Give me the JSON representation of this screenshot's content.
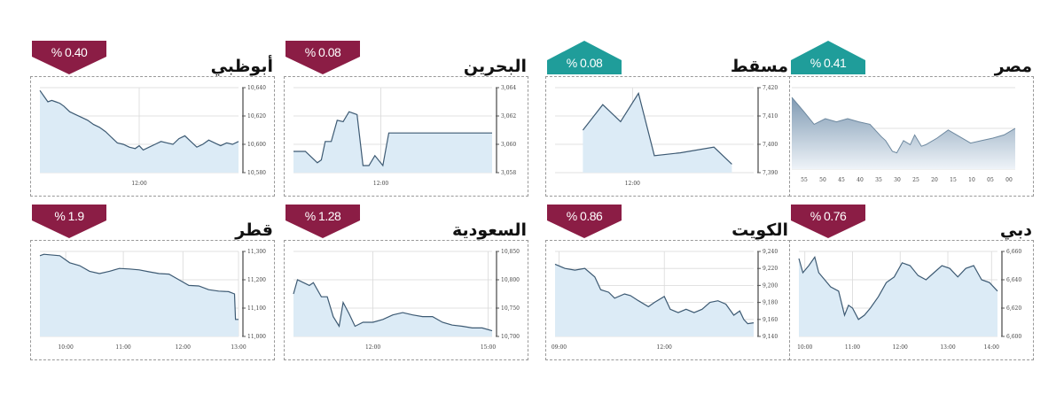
{
  "colors": {
    "down": "#8b1d45",
    "up": "#1f9d9a",
    "line": "#3d5a73",
    "fill": "#dcebf6",
    "grid": "#d9d9d9"
  },
  "panels": [
    {
      "id": "abudhabi",
      "title": "أبوظبي",
      "badge": "% 0.40",
      "direction": "down"
    },
    {
      "id": "bahrain",
      "title": "البحرين",
      "badge": "% 0.08",
      "direction": "down"
    },
    {
      "id": "muscat",
      "title": "مسقط",
      "badge": "% 0.08",
      "direction": "up"
    },
    {
      "id": "egypt",
      "title": "مصر",
      "badge": "% 0.41",
      "direction": "up"
    },
    {
      "id": "qatar",
      "title": "قطر",
      "badge": "% 1.9",
      "direction": "down"
    },
    {
      "id": "saudi",
      "title": "السعودية",
      "badge": "% 1.28",
      "direction": "down"
    },
    {
      "id": "kuwait",
      "title": "الكويت",
      "badge": "% 0.86",
      "direction": "down"
    },
    {
      "id": "dubai",
      "title": "دبي",
      "badge": "% 0.76",
      "direction": "down"
    }
  ],
  "chart_data": [
    {
      "type": "area",
      "title": "أبوظبي",
      "change": "0.40 %",
      "direction": "down",
      "yticks": [
        "10,640",
        "10,620",
        "10,600",
        "10,580"
      ],
      "ylim": [
        10580,
        10640
      ],
      "xticks": [
        {
          "label": "12:00",
          "pos": 0.5
        }
      ],
      "x": [
        0,
        0.02,
        0.04,
        0.06,
        0.08,
        0.1,
        0.12,
        0.15,
        0.18,
        0.21,
        0.24,
        0.27,
        0.3,
        0.33,
        0.36,
        0.39,
        0.42,
        0.45,
        0.48,
        0.5,
        0.52,
        0.55,
        0.58,
        0.61,
        0.64,
        0.67,
        0.7,
        0.73,
        0.76,
        0.79,
        0.82,
        0.85,
        0.88,
        0.91,
        0.94,
        0.97,
        1.0
      ],
      "values": [
        10638,
        10634,
        10630,
        10631,
        10630,
        10629,
        10627,
        10623,
        10621,
        10619,
        10617,
        10614,
        10612,
        10609,
        10605,
        10601,
        10600,
        10598,
        10597,
        10599,
        10596,
        10598,
        10600,
        10602,
        10601,
        10600,
        10604,
        10606,
        10602,
        10598,
        10600,
        10603,
        10601,
        10599,
        10601,
        10600,
        10602
      ]
    },
    {
      "type": "line",
      "title": "البحرين",
      "change": "0.08 %",
      "direction": "down",
      "yticks": [
        "3,064",
        "3,062",
        "3,060",
        "3,058"
      ],
      "ylim": [
        3058,
        3064
      ],
      "xticks": [
        {
          "label": "12:00",
          "pos": 0.44
        }
      ],
      "x": [
        0,
        0.06,
        0.12,
        0.14,
        0.16,
        0.19,
        0.22,
        0.25,
        0.28,
        0.32,
        0.35,
        0.38,
        0.41,
        0.45,
        0.48,
        0.51,
        0.54,
        0.56,
        0.59,
        1.0
      ],
      "values": [
        3059.5,
        3059.5,
        3058.7,
        3058.9,
        3060.2,
        3060.2,
        3061.7,
        3061.6,
        3062.3,
        3062.1,
        3058.5,
        3058.5,
        3059.2,
        3058.5,
        3060.8,
        3060.8,
        3060.8,
        3060.8,
        3060.8,
        3060.8
      ]
    },
    {
      "type": "area",
      "title": "مسقط",
      "change": "0.08 %",
      "direction": "up",
      "yticks": [
        "7,420",
        "7,410",
        "7,400",
        "7,390"
      ],
      "ylim": [
        7390,
        7420
      ],
      "xticks": [
        {
          "label": "12:00",
          "pos": 0.39
        }
      ],
      "x": [
        0.14,
        0.24,
        0.33,
        0.42,
        0.5,
        0.63,
        0.8,
        0.89
      ],
      "values": [
        7405,
        7414,
        7408,
        7418,
        7396,
        7397,
        7399,
        7393
      ]
    },
    {
      "type": "area",
      "title": "مصر",
      "change": "0.41 %",
      "direction": "up",
      "yticks": [
        "",
        "",
        ""
      ],
      "ylim": [
        0,
        100
      ],
      "xticks_note": "illegible time labels",
      "x": [
        0,
        0.05,
        0.1,
        0.15,
        0.2,
        0.25,
        0.3,
        0.35,
        0.4,
        0.42,
        0.45,
        0.47,
        0.5,
        0.53,
        0.55,
        0.58,
        0.6,
        0.65,
        0.7,
        0.75,
        0.8,
        0.85,
        0.9,
        0.95,
        1.0
      ],
      "values": [
        88,
        72,
        55,
        62,
        58,
        62,
        58,
        55,
        40,
        35,
        22,
        20,
        35,
        30,
        42,
        28,
        30,
        38,
        48,
        40,
        32,
        35,
        38,
        42,
        50
      ]
    },
    {
      "type": "area",
      "title": "قطر",
      "change": "1.9 %",
      "direction": "down",
      "yticks": [
        "11,300",
        "11,200",
        "11,100",
        "11,000"
      ],
      "ylim": [
        11000,
        11300
      ],
      "xticks": [
        {
          "label": "10:00",
          "pos": 0.13
        },
        {
          "label": "11:00",
          "pos": 0.42
        },
        {
          "label": "12:00",
          "pos": 0.72
        },
        {
          "label": "13:00",
          "pos": 1.0
        }
      ],
      "x": [
        0,
        0.02,
        0.05,
        0.1,
        0.15,
        0.2,
        0.25,
        0.3,
        0.35,
        0.4,
        0.45,
        0.5,
        0.55,
        0.6,
        0.65,
        0.7,
        0.75,
        0.8,
        0.85,
        0.9,
        0.95,
        0.98,
        0.985,
        1.0
      ],
      "values": [
        11285,
        11290,
        11288,
        11285,
        11260,
        11250,
        11230,
        11222,
        11230,
        11240,
        11238,
        11235,
        11228,
        11222,
        11220,
        11200,
        11180,
        11178,
        11165,
        11160,
        11158,
        11150,
        11060,
        11060
      ]
    },
    {
      "type": "area",
      "title": "السعودية",
      "change": "1.28 %",
      "direction": "down",
      "yticks": [
        "10,850",
        "10,800",
        "10,750",
        "10,700"
      ],
      "ylim": [
        10700,
        10850
      ],
      "xticks": [
        {
          "label": "12:00",
          "pos": 0.4
        },
        {
          "label": "15:00",
          "pos": 0.98
        }
      ],
      "x": [
        0,
        0.02,
        0.05,
        0.08,
        0.1,
        0.14,
        0.17,
        0.2,
        0.23,
        0.25,
        0.28,
        0.31,
        0.35,
        0.4,
        0.45,
        0.5,
        0.55,
        0.6,
        0.65,
        0.7,
        0.75,
        0.8,
        0.85,
        0.9,
        0.95,
        1.0
      ],
      "values": [
        10775,
        10800,
        10795,
        10790,
        10795,
        10770,
        10770,
        10735,
        10718,
        10760,
        10740,
        10718,
        10725,
        10725,
        10730,
        10738,
        10742,
        10738,
        10735,
        10735,
        10725,
        10720,
        10718,
        10715,
        10715,
        10710
      ]
    },
    {
      "type": "area",
      "title": "الكويت",
      "change": "0.86 %",
      "direction": "down",
      "yticks": [
        "9,240",
        "9,220",
        "9,200",
        "9,180",
        "9,160",
        "9,140"
      ],
      "ylim": [
        9140,
        9240
      ],
      "xticks": [
        {
          "label": "09:00",
          "pos": 0.02
        },
        {
          "label": "12:00",
          "pos": 0.55
        }
      ],
      "x": [
        0,
        0.05,
        0.1,
        0.15,
        0.2,
        0.23,
        0.27,
        0.3,
        0.35,
        0.38,
        0.42,
        0.47,
        0.5,
        0.55,
        0.58,
        0.62,
        0.66,
        0.7,
        0.74,
        0.78,
        0.82,
        0.86,
        0.9,
        0.93,
        0.95,
        0.97,
        1.0
      ],
      "values": [
        9225,
        9220,
        9218,
        9220,
        9210,
        9195,
        9192,
        9185,
        9190,
        9188,
        9182,
        9175,
        9180,
        9187,
        9172,
        9168,
        9172,
        9168,
        9172,
        9180,
        9182,
        9178,
        9165,
        9170,
        9160,
        9155,
        9156
      ]
    },
    {
      "type": "area",
      "title": "دبي",
      "change": "0.76 %",
      "direction": "down",
      "yticks": [
        "6,660",
        "6,640",
        "6,620",
        "6,600"
      ],
      "ylim": [
        6600,
        6660
      ],
      "xticks": [
        {
          "label": "10:00",
          "pos": 0.03
        },
        {
          "label": "11:00",
          "pos": 0.27
        },
        {
          "label": "12:00",
          "pos": 0.51
        },
        {
          "label": "13:00",
          "pos": 0.75
        },
        {
          "label": "14:00",
          "pos": 0.97
        }
      ],
      "x": [
        0,
        0.02,
        0.05,
        0.08,
        0.1,
        0.13,
        0.16,
        0.2,
        0.23,
        0.25,
        0.27,
        0.3,
        0.33,
        0.36,
        0.4,
        0.44,
        0.48,
        0.52,
        0.56,
        0.6,
        0.64,
        0.68,
        0.72,
        0.76,
        0.8,
        0.84,
        0.88,
        0.92,
        0.96,
        1.0
      ],
      "values": [
        6655,
        6645,
        6650,
        6656,
        6645,
        6640,
        6635,
        6632,
        6615,
        6622,
        6620,
        6612,
        6615,
        6620,
        6628,
        6638,
        6642,
        6652,
        6650,
        6643,
        6640,
        6645,
        6650,
        6648,
        6642,
        6648,
        6650,
        6640,
        6638,
        6632
      ]
    }
  ]
}
